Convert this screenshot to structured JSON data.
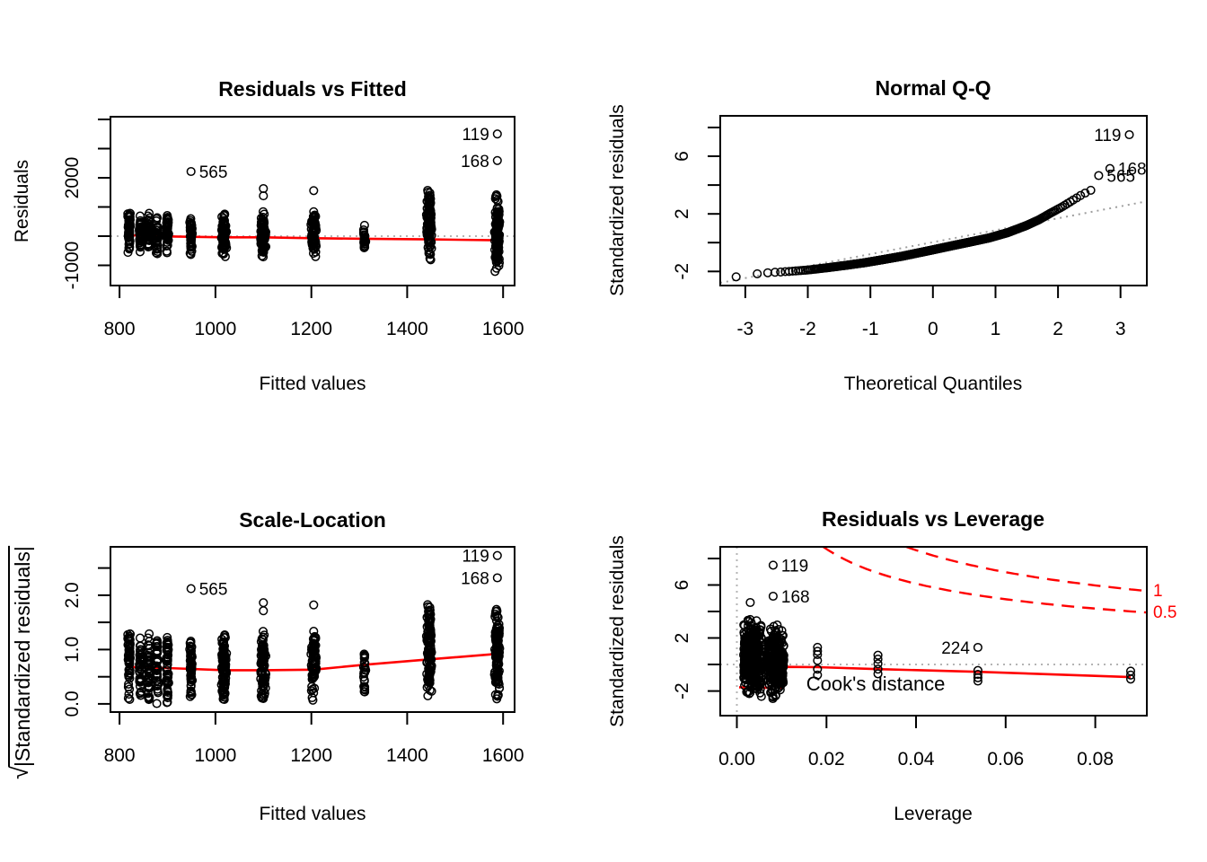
{
  "figure": {
    "background": "#ffffff",
    "colors": {
      "points": "#000000",
      "smoother_line": "#ff0000",
      "cook_contour": "#ff0000",
      "dotted_guide": "#b4b4b4",
      "qq_reference_line": "#9e9e9e",
      "text": "#000000"
    }
  },
  "chart_data": [
    {
      "type": "scatter",
      "panel": "top-left",
      "title": "Residuals vs Fitted",
      "xlabel": "Fitted values",
      "ylabel": "Residuals",
      "xlim": [
        781,
        1624
      ],
      "ylim": [
        -1692,
        4092
      ],
      "xticks": [
        800,
        1000,
        1200,
        1400,
        1600
      ],
      "xtick_labels": [
        "800",
        "1000",
        "1200",
        "1400",
        "1600"
      ],
      "yticks": [
        -1000,
        0,
        1000,
        2000,
        3000,
        4000
      ],
      "ytick_labels": [
        "-1000",
        "",
        "",
        "2000",
        "",
        ""
      ],
      "zero_line_y": 0,
      "clusters": [
        {
          "x": 820,
          "n": 55,
          "ymin": -720,
          "ymax": 950
        },
        {
          "x": 843,
          "n": 45,
          "ymin": -680,
          "ymax": 870
        },
        {
          "x": 861,
          "n": 42,
          "ymin": -650,
          "ymax": 820
        },
        {
          "x": 878,
          "n": 38,
          "ymin": -630,
          "ymax": 780
        },
        {
          "x": 900,
          "n": 48,
          "ymin": -660,
          "ymax": 800
        },
        {
          "x": 949,
          "n": 55,
          "ymin": -700,
          "ymax": 730
        },
        {
          "x": 1018,
          "n": 105,
          "ymin": -820,
          "ymax": 920
        },
        {
          "x": 1100,
          "n": 88,
          "ymin": -860,
          "ymax": 1020,
          "extra": [
            1380,
            1630
          ]
        },
        {
          "x": 1205,
          "n": 78,
          "ymin": -800,
          "ymax": 920,
          "extra": [
            1560
          ]
        },
        {
          "x": 1311,
          "n": 26,
          "ymin": -560,
          "ymax": 430
        },
        {
          "x": 1446,
          "n": 125,
          "ymin": -950,
          "ymax": 1900
        },
        {
          "x": 1588,
          "n": 115,
          "ymin": -1260,
          "ymax": 1520
        }
      ],
      "labeled_points": [
        {
          "label": "119",
          "x": 1588,
          "y": 3500,
          "label_side": "left"
        },
        {
          "label": "168",
          "x": 1588,
          "y": 2590,
          "label_side": "left"
        },
        {
          "label": "565",
          "x": 949,
          "y": 2215,
          "label_side": "right"
        }
      ],
      "smoother": [
        [
          820,
          30
        ],
        [
          900,
          -10
        ],
        [
          1020,
          -40
        ],
        [
          1100,
          -40
        ],
        [
          1205,
          -70
        ],
        [
          1311,
          -90
        ],
        [
          1446,
          -110
        ],
        [
          1588,
          -140
        ]
      ]
    },
    {
      "type": "scatter",
      "panel": "top-right",
      "title": "Normal Q-Q",
      "xlabel": "Theoretical Quantiles",
      "ylabel": "Standardized residuals",
      "xlim": [
        -3.4,
        3.42
      ],
      "ylim": [
        -2.98,
        8.81
      ],
      "xticks": [
        -3,
        -2,
        -1,
        0,
        1,
        2,
        3
      ],
      "xtick_labels": [
        "-3",
        "-2",
        "-1",
        "0",
        "1",
        "2",
        "3"
      ],
      "yticks": [
        -2,
        0,
        2,
        4,
        6,
        8
      ],
      "ytick_labels": [
        "-2",
        "",
        "2",
        "",
        "6",
        ""
      ],
      "n_points": 600,
      "curve_anchors": [
        [
          -3.25,
          -2.45
        ],
        [
          -3.14,
          -2.37
        ],
        [
          -2.9,
          -2.2
        ],
        [
          -2.6,
          -2.08
        ],
        [
          -2.3,
          -2.0
        ],
        [
          -2.0,
          -1.9
        ],
        [
          -1.7,
          -1.75
        ],
        [
          -1.4,
          -1.58
        ],
        [
          -1.1,
          -1.4
        ],
        [
          -0.8,
          -1.18
        ],
        [
          -0.5,
          -0.95
        ],
        [
          -0.2,
          -0.68
        ],
        [
          0,
          -0.5
        ],
        [
          0.3,
          -0.22
        ],
        [
          0.6,
          0.05
        ],
        [
          0.9,
          0.33
        ],
        [
          1.2,
          0.7
        ],
        [
          1.5,
          1.2
        ],
        [
          1.7,
          1.6
        ],
        [
          1.9,
          2.1
        ],
        [
          2.05,
          2.45
        ],
        [
          2.2,
          2.85
        ],
        [
          2.35,
          3.25
        ],
        [
          2.5,
          3.6
        ],
        [
          2.58,
          3.72
        ]
      ],
      "ref_line": {
        "slope": 0.83,
        "intercept": 0.03,
        "style": "dotted"
      },
      "labeled_points": [
        {
          "label": "565",
          "x": 2.65,
          "y": 4.66,
          "label_side": "right"
        },
        {
          "label": "168",
          "x": 2.83,
          "y": 5.15,
          "label_side": "right"
        },
        {
          "label": "119",
          "x": 3.14,
          "y": 7.5,
          "label_side": "left"
        }
      ]
    },
    {
      "type": "scatter",
      "panel": "bottom-left",
      "title": "Scale-Location",
      "xlabel": "Fitted values",
      "ylabel_radical": "√",
      "ylabel_inner": "|Standardized residuals|",
      "xlim": [
        781,
        1624
      ],
      "ylim": [
        -0.15,
        2.89
      ],
      "xticks": [
        800,
        1000,
        1200,
        1400,
        1600
      ],
      "xtick_labels": [
        "800",
        "1000",
        "1200",
        "1400",
        "1600"
      ],
      "yticks": [
        0,
        0.5,
        1,
        1.5,
        2,
        2.5
      ],
      "ytick_labels": [
        "0.0",
        "",
        "1.0",
        "",
        "2.0",
        ""
      ],
      "derived_from_panel": "top-left",
      "sigma": 470,
      "labeled_points": [
        {
          "label": "119",
          "x": 1588,
          "y": 2.73,
          "label_side": "left"
        },
        {
          "label": "168",
          "x": 1588,
          "y": 2.32,
          "label_side": "left"
        },
        {
          "label": "565",
          "x": 949,
          "y": 2.12,
          "label_side": "right"
        }
      ],
      "smoother": [
        [
          820,
          0.68
        ],
        [
          900,
          0.66
        ],
        [
          1020,
          0.62
        ],
        [
          1100,
          0.62
        ],
        [
          1205,
          0.63
        ],
        [
          1311,
          0.72
        ],
        [
          1446,
          0.82
        ],
        [
          1588,
          0.92
        ]
      ]
    },
    {
      "type": "scatter",
      "panel": "bottom-right",
      "title": "Residuals vs Leverage",
      "xlabel": "Leverage",
      "ylabel": "Standardized residuals",
      "xlim": [
        -0.0037,
        0.0915
      ],
      "ylim": [
        -3.86,
        8.88
      ],
      "xticks": [
        0,
        0.02,
        0.04,
        0.06,
        0.08
      ],
      "xtick_labels": [
        "0.00",
        "0.02",
        "0.04",
        "0.06",
        "0.08"
      ],
      "yticks": [
        -2,
        0,
        2,
        4,
        6,
        8
      ],
      "ytick_labels": [
        "-2",
        "",
        "2",
        "",
        "6",
        ""
      ],
      "h_zero_guide": true,
      "v_zero_guide": true,
      "clusters": [
        {
          "xmin": 0.0015,
          "xmax": 0.0055,
          "n": 380,
          "ymin": -2.5,
          "ymax": 3.5
        },
        {
          "xmin": 0.007,
          "xmax": 0.0105,
          "n": 300,
          "ymin": -2.85,
          "ymax": 3.2
        }
      ],
      "point_groups": [
        {
          "x": 0.018,
          "ys": [
            1.3,
            1.0,
            0.75,
            0.3,
            -0.35,
            -0.8
          ]
        },
        {
          "x": 0.0315,
          "ys": [
            0.7,
            0.4,
            0.05,
            -0.35,
            -0.7
          ]
        },
        {
          "x": 0.0538,
          "ys": [
            -0.45,
            -0.75,
            -1.0,
            -1.25
          ]
        },
        {
          "x": 0.0879,
          "ys": [
            -0.5,
            -0.8,
            -1.1
          ]
        }
      ],
      "extra_points": [
        {
          "x": 0.003,
          "y": 4.68
        }
      ],
      "labeled_points": [
        {
          "label": "119",
          "x": 0.0081,
          "y": 7.5,
          "label_side": "right"
        },
        {
          "label": "168",
          "x": 0.0081,
          "y": 5.15,
          "label_side": "right"
        },
        {
          "label": "224",
          "x": 0.0538,
          "y": 1.29,
          "label_side": "left"
        }
      ],
      "smoother": [
        [
          0.0013,
          -0.05
        ],
        [
          0.002,
          -0.35
        ],
        [
          0.0028,
          0.05
        ],
        [
          0.004,
          -0.15
        ],
        [
          0.0055,
          -0.1
        ],
        [
          0.007,
          -0.2
        ],
        [
          0.0105,
          -0.18
        ],
        [
          0.018,
          -0.2
        ],
        [
          0.0315,
          -0.35
        ],
        [
          0.0538,
          -0.55
        ],
        [
          0.0879,
          -0.95
        ]
      ],
      "cook_contours": [
        {
          "cook_d": "0.5",
          "c": 1.55,
          "label": "0.5"
        },
        {
          "cook_d": "1",
          "c": 3.1,
          "label": "1"
        }
      ],
      "lower_dashed_segment": [
        [
          0.0005,
          -1.72
        ],
        [
          0.01,
          -1.78
        ]
      ],
      "legend_text": "Cook's distance",
      "legend_pos": {
        "x": 0.0155,
        "y": -1.95
      }
    }
  ]
}
